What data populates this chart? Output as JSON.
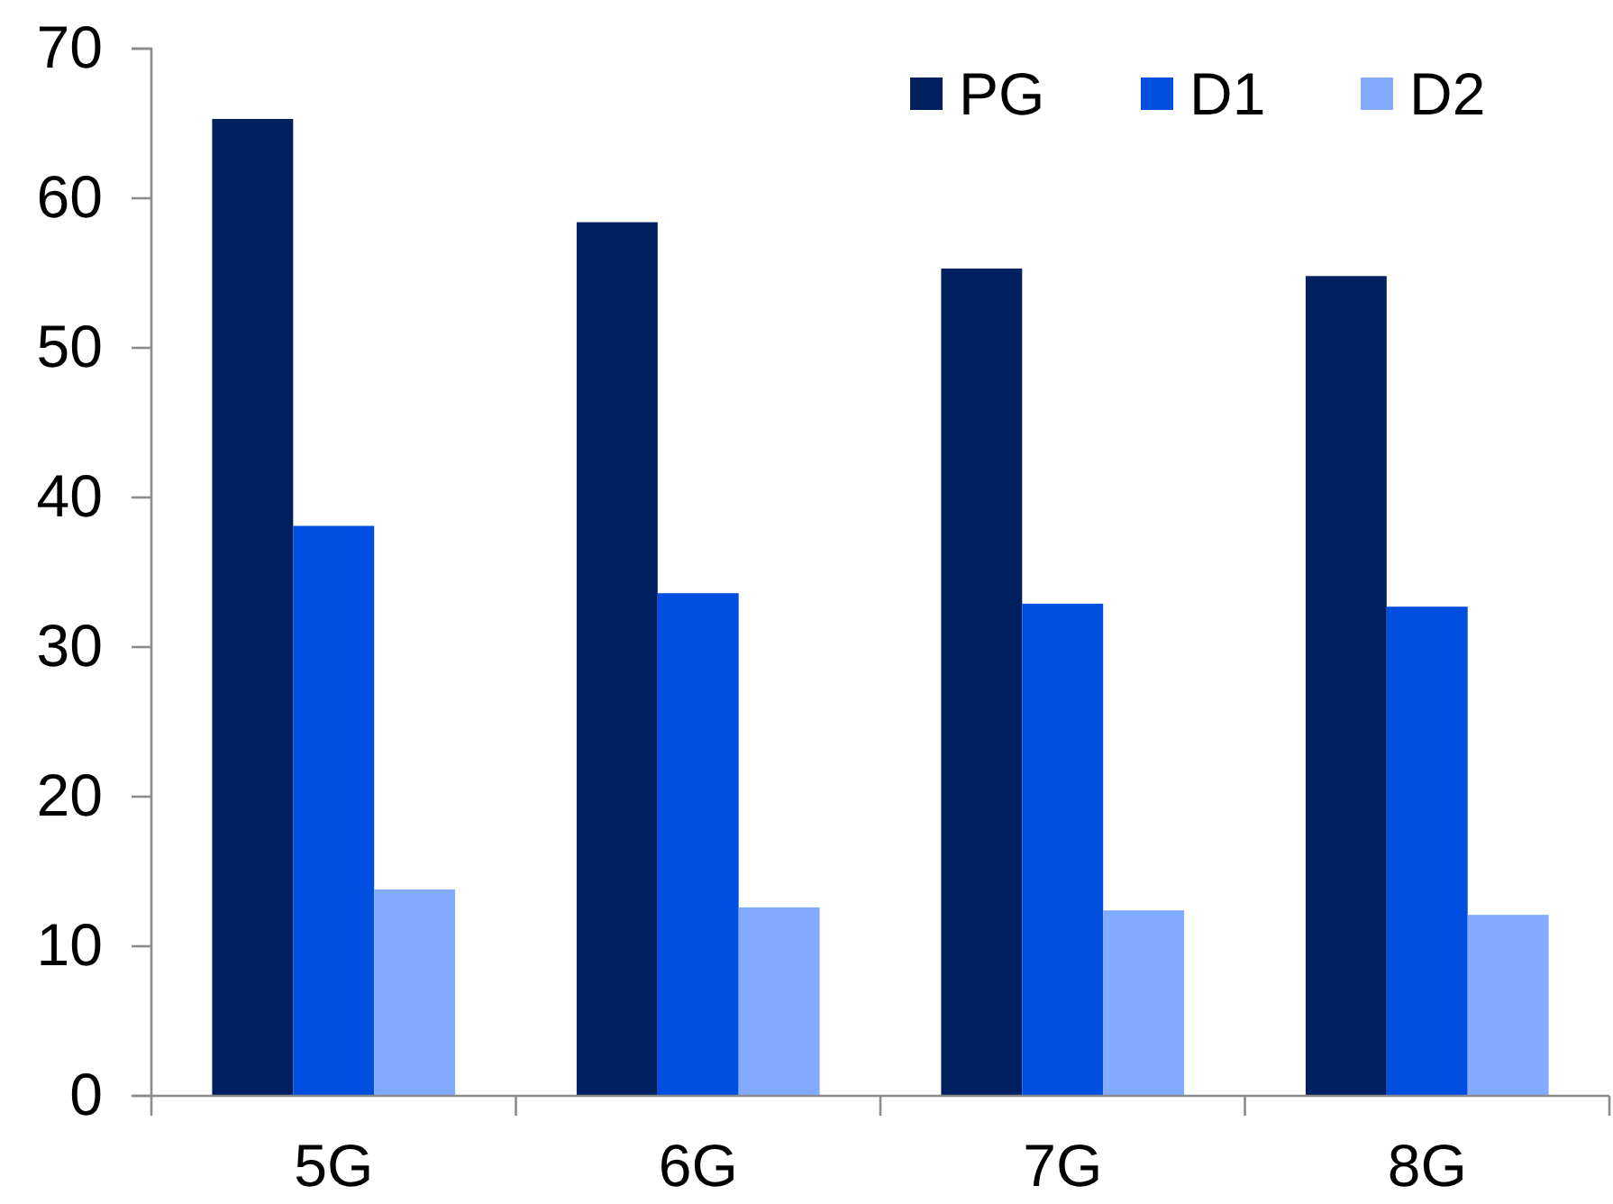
{
  "chart_data": {
    "type": "bar",
    "categories": [
      "5G",
      "6G",
      "7G",
      "8G"
    ],
    "series": [
      {
        "name": "PG",
        "color": "#00205f",
        "values": [
          65.3,
          58.4,
          55.3,
          54.8
        ]
      },
      {
        "name": "D1",
        "color": "#004fe0",
        "values": [
          38.1,
          33.6,
          32.9,
          32.7
        ]
      },
      {
        "name": "D2",
        "color": "#82abff",
        "values": [
          13.8,
          12.6,
          12.4,
          12.1
        ]
      }
    ],
    "ylim": [
      0,
      70
    ],
    "yticks": [
      0,
      10,
      20,
      30,
      40,
      50,
      60,
      70
    ],
    "grid": false,
    "legend": "top right"
  }
}
